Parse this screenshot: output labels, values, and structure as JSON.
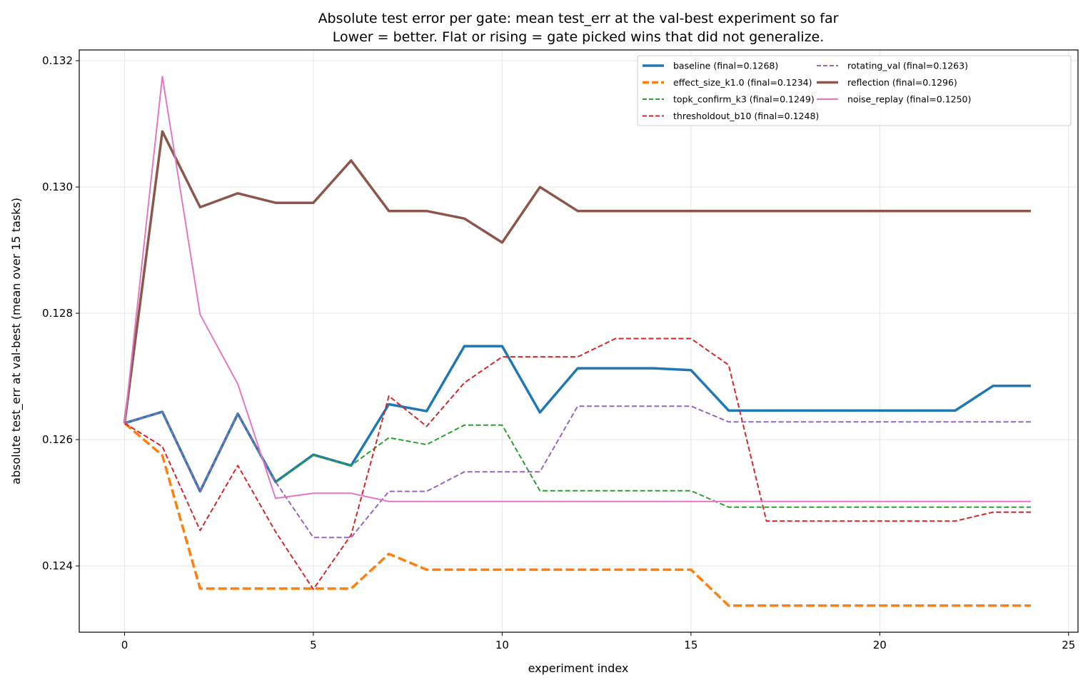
{
  "chart_data": {
    "type": "line",
    "title": "Absolute test error per gate: mean test_err at the val-best experiment so far",
    "subtitle": "Lower = better. Flat or rising = gate picked wins that did not generalize.",
    "xlabel": "experiment index",
    "ylabel": "absolute test_err at val-best  (mean over 15 tasks)",
    "xlim": [
      -1.2,
      25.25
    ],
    "ylim": [
      0.12295,
      0.13217
    ],
    "xticks": [
      0,
      5,
      10,
      15,
      20,
      25
    ],
    "xtick_labels": [
      "0",
      "5",
      "10",
      "15",
      "20",
      "25"
    ],
    "yticks": [
      0.124,
      0.126,
      0.128,
      0.13,
      0.132
    ],
    "ytick_labels": [
      "0.124",
      "0.126",
      "0.128",
      "0.130",
      "0.132"
    ],
    "grid": true,
    "legend_position": "top-right",
    "x": [
      0,
      1,
      2,
      3,
      4,
      5,
      6,
      7,
      8,
      9,
      10,
      11,
      12,
      13,
      14,
      15,
      16,
      17,
      18,
      19,
      20,
      21,
      22,
      23,
      24
    ],
    "series": [
      {
        "name": "baseline",
        "label": "baseline  (final=0.1268)",
        "color": "#1f77b4",
        "style": "solid",
        "width": 3.5,
        "values": [
          0.12626,
          0.12644,
          0.12518,
          0.12641,
          0.12533,
          0.12576,
          0.12559,
          0.12656,
          0.12645,
          0.12748,
          0.12748,
          0.12643,
          0.12713,
          0.12713,
          0.12713,
          0.1271,
          0.12646,
          0.12646,
          0.12646,
          0.12646,
          0.12646,
          0.12646,
          0.12646,
          0.12685,
          0.12685
        ]
      },
      {
        "name": "effect_size_k1.0",
        "label": "effect_size_k1.0  (final=0.1234)",
        "color": "#ff7f0e",
        "style": "dashed",
        "width": 3.5,
        "values": [
          0.12626,
          0.12575,
          0.12364,
          0.12364,
          0.12364,
          0.12364,
          0.12364,
          0.12419,
          0.12394,
          0.12394,
          0.12394,
          0.12394,
          0.12394,
          0.12394,
          0.12394,
          0.12394,
          0.12337,
          0.12337,
          0.12337,
          0.12337,
          0.12337,
          0.12337,
          0.12337,
          0.12337,
          0.12337
        ]
      },
      {
        "name": "topk_confirm_k3",
        "label": "topk_confirm_k3  (final=0.1249)",
        "color": "#2ca02c",
        "style": "dashed",
        "width": 2,
        "values": [
          0.12626,
          0.12644,
          0.12518,
          0.12641,
          0.12532,
          0.12575,
          0.12559,
          0.12603,
          0.12592,
          0.12623,
          0.12623,
          0.12519,
          0.12519,
          0.12519,
          0.12519,
          0.12519,
          0.12493,
          0.12493,
          0.12493,
          0.12493,
          0.12493,
          0.12493,
          0.12493,
          0.12493,
          0.12493
        ]
      },
      {
        "name": "thresholdout_b10",
        "label": "thresholdout_b10  (final=0.1248)",
        "color": "#d62728",
        "style": "dashed",
        "width": 2,
        "values": [
          0.12626,
          0.12589,
          0.12456,
          0.12559,
          0.12454,
          0.12363,
          0.12449,
          0.12669,
          0.12621,
          0.1269,
          0.12731,
          0.12731,
          0.12731,
          0.1276,
          0.1276,
          0.1276,
          0.12718,
          0.12471,
          0.12471,
          0.12471,
          0.12471,
          0.12471,
          0.12471,
          0.12485,
          0.12485
        ]
      },
      {
        "name": "rotating_val",
        "label": "rotating_val  (final=0.1263)",
        "color": "#9467bd",
        "style": "dashed",
        "width": 2,
        "values": [
          0.12626,
          0.12644,
          0.12518,
          0.12641,
          0.12533,
          0.12445,
          0.12445,
          0.12518,
          0.12518,
          0.12549,
          0.12549,
          0.12549,
          0.12653,
          0.12653,
          0.12653,
          0.12653,
          0.12628,
          0.12628,
          0.12628,
          0.12628,
          0.12628,
          0.12628,
          0.12628,
          0.12628,
          0.12628
        ]
      },
      {
        "name": "reflection",
        "label": "reflection  (final=0.1296)",
        "color": "#8c564b",
        "style": "solid",
        "width": 3.5,
        "values": [
          0.12626,
          0.13088,
          0.12968,
          0.1299,
          0.12975,
          0.12975,
          0.13042,
          0.12962,
          0.12962,
          0.1295,
          0.12912,
          0.13,
          0.12962,
          0.12962,
          0.12962,
          0.12962,
          0.12962,
          0.12962,
          0.12962,
          0.12962,
          0.12962,
          0.12962,
          0.12962,
          0.12962,
          0.12962
        ]
      },
      {
        "name": "noise_replay",
        "label": "noise_replay  (final=0.1250)",
        "color": "#e377c2",
        "style": "solid",
        "width": 2,
        "values": [
          0.12626,
          0.13175,
          0.12798,
          0.12688,
          0.12507,
          0.12515,
          0.12515,
          0.12502,
          0.12502,
          0.12502,
          0.12502,
          0.12502,
          0.12502,
          0.12502,
          0.12502,
          0.12502,
          0.12502,
          0.12502,
          0.12502,
          0.12502,
          0.12502,
          0.12502,
          0.12502,
          0.12502,
          0.12502
        ]
      }
    ]
  }
}
